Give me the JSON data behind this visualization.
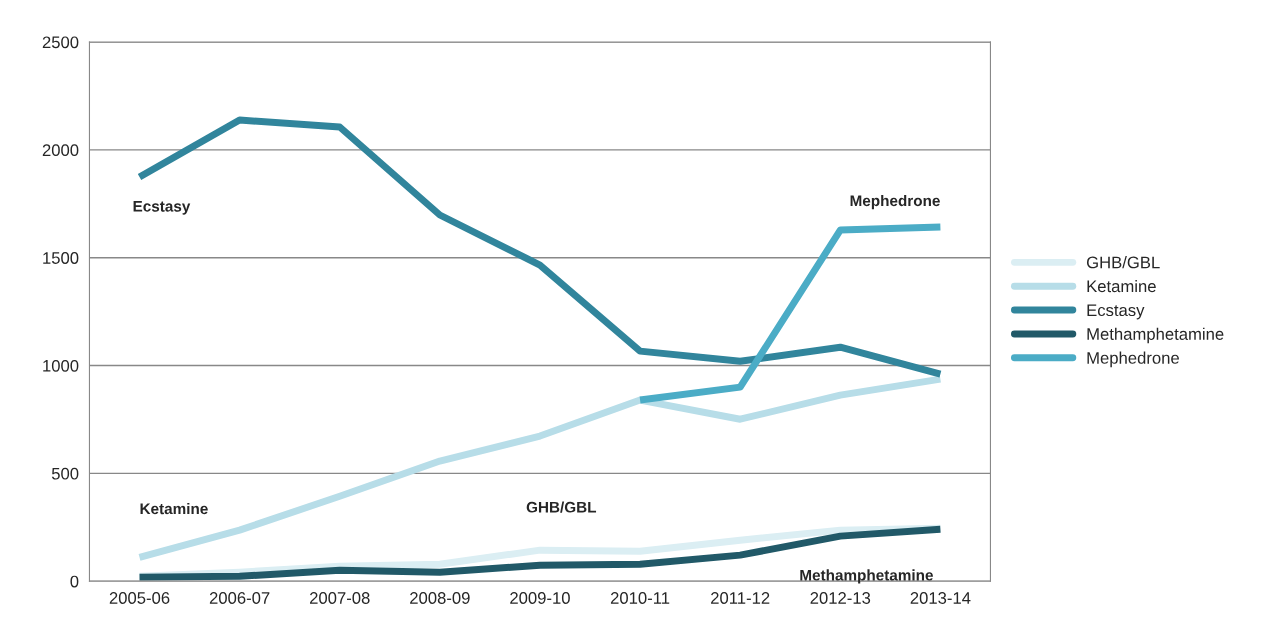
{
  "chart_data": {
    "type": "line",
    "categories": [
      "2005-06",
      "2006-07",
      "2007-08",
      "2008-09",
      "2009-10",
      "2010-11",
      "2011-12",
      "2012-13",
      "2013-14"
    ],
    "series": [
      {
        "name": "GHB/GBL",
        "color": "#dbeef3",
        "values": [
          23,
          42,
          70,
          79,
          144,
          139,
          190,
          237,
          246
        ]
      },
      {
        "name": "Ketamine",
        "color": "#b7dde8",
        "values": [
          111,
          237,
          394,
          557,
          673,
          840,
          751,
          863,
          937
        ]
      },
      {
        "name": "Ecstasy",
        "color": "#31859c",
        "values": [
          1874,
          2138,
          2106,
          1698,
          1466,
          1067,
          1020,
          1085,
          960
        ]
      },
      {
        "name": "Methamphetamine",
        "color": "#215968",
        "values": [
          19,
          23,
          51,
          42,
          74,
          79,
          121,
          209,
          241
        ]
      },
      {
        "name": "Mephedrone",
        "color": "#4bacc6",
        "values": [
          null,
          null,
          null,
          null,
          null,
          840,
          900,
          1628,
          1642
        ]
      }
    ],
    "ylim": [
      0,
      2500
    ],
    "yticks": [
      0,
      500,
      1000,
      1500,
      2000,
      2500
    ],
    "grid": "y",
    "legend": "right",
    "line_style": "solid",
    "marker": "none",
    "annotations": [
      {
        "text": "Ecstasy",
        "x": "2005-06",
        "y": 1874
      },
      {
        "text": "Ketamine",
        "x": "2005-06",
        "y": 111
      },
      {
        "text": "GHB/GBL",
        "x": "2009-10",
        "y": 144
      },
      {
        "text": "Mephedrone",
        "x": "2013-14",
        "y": 1642
      },
      {
        "text": "Methamphetamine",
        "x": "2013-14",
        "y": 241
      }
    ]
  }
}
